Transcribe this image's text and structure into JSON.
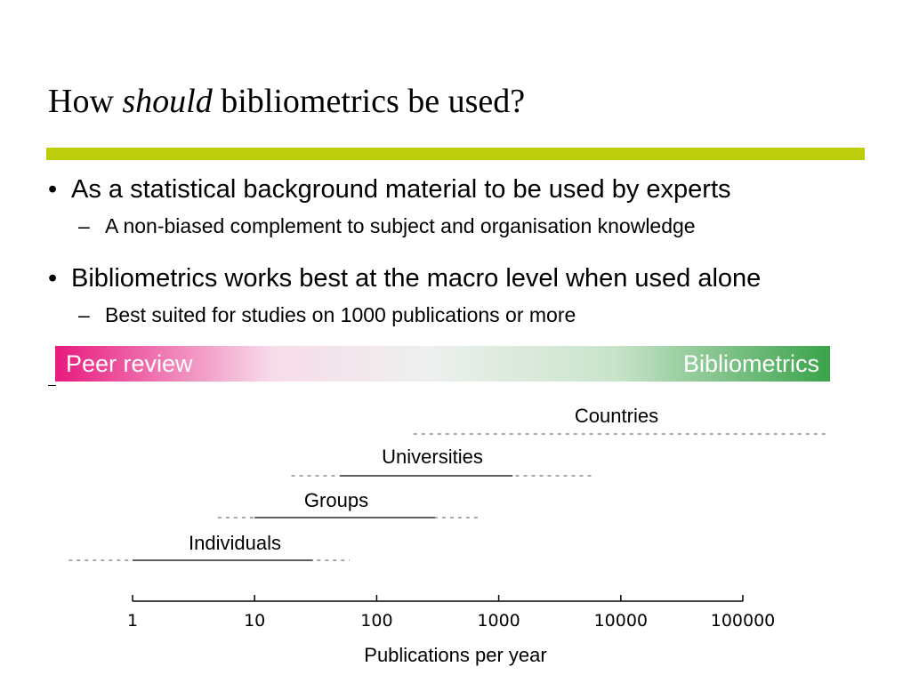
{
  "slide": {
    "title_pre": "How ",
    "title_em": "should",
    "title_post": " bibliometrics be used?",
    "accent_color": "#bccd0c",
    "bullets": [
      {
        "text": "As a statistical background material to be used by experts",
        "sub": "A non-biased complement to subject and organisation knowledge"
      },
      {
        "text": "Bibliometrics works best at the macro level when used alone",
        "sub": "Best suited for studies on 1000 publications or more"
      }
    ],
    "bullet_mark": "•",
    "sub_mark": "–"
  },
  "band": {
    "left_label": "Peer review",
    "right_label": "Bibliometrics",
    "left_color": "#e8197d",
    "right_color": "#3aa34a"
  },
  "chart_data": {
    "type": "range",
    "x_scale": "log",
    "x_ticks": [
      "1",
      "10",
      "100",
      "1000",
      "10000",
      "100000"
    ],
    "x_tick_values": [
      1,
      10,
      100,
      1000,
      10000,
      100000
    ],
    "xlabel": "Publications per year",
    "series": [
      {
        "name": "Countries",
        "extended": [
          200,
          500000
        ],
        "core": null
      },
      {
        "name": "Universities",
        "extended": [
          20,
          6000
        ],
        "core": [
          50,
          1300
        ]
      },
      {
        "name": "Groups",
        "extended": [
          5,
          700
        ],
        "core": [
          10,
          300
        ]
      },
      {
        "name": "Individuals",
        "extended": [
          0.3,
          60
        ],
        "core": [
          1,
          30
        ]
      }
    ]
  }
}
